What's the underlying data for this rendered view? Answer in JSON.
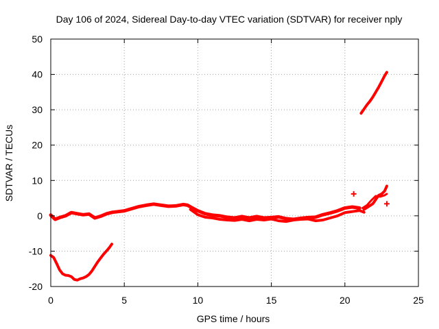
{
  "chart_data": {
    "type": "scatter",
    "title": "Day 106 of 2024, Sidereal Day-to-day VTEC variation (SDTVAR) for receiver nply",
    "xlabel": "GPS time / hours",
    "ylabel": "SDTVAR / TECUs",
    "xlim": [
      0,
      25
    ],
    "ylim": [
      -20,
      50
    ],
    "xticks": [
      0,
      5,
      10,
      15,
      20,
      25
    ],
    "yticks": [
      -20,
      -10,
      0,
      10,
      20,
      30,
      40,
      50
    ],
    "grid": true,
    "legend": "none",
    "color": "#ff0000",
    "series": [
      {
        "name": "track-negative-dip",
        "points": [
          [
            0.0,
            -11.2
          ],
          [
            0.2,
            -11.8
          ],
          [
            0.4,
            -13.5
          ],
          [
            0.6,
            -15.3
          ],
          [
            0.8,
            -16.4
          ],
          [
            1.0,
            -16.8
          ],
          [
            1.2,
            -16.9
          ],
          [
            1.4,
            -17.2
          ],
          [
            1.6,
            -18.0
          ],
          [
            1.8,
            -18.2
          ],
          [
            2.0,
            -17.8
          ],
          [
            2.2,
            -17.6
          ],
          [
            2.4,
            -17.2
          ],
          [
            2.6,
            -16.6
          ],
          [
            2.8,
            -15.6
          ],
          [
            3.0,
            -14.3
          ],
          [
            3.2,
            -13.0
          ],
          [
            3.4,
            -11.9
          ],
          [
            3.6,
            -10.8
          ],
          [
            3.8,
            -9.9
          ],
          [
            4.0,
            -8.9
          ],
          [
            4.15,
            -8.0
          ]
        ],
        "width": 4
      },
      {
        "name": "track-main-band",
        "points": [
          [
            0.0,
            0.2
          ],
          [
            0.3,
            -1.0
          ],
          [
            0.6,
            -0.5
          ],
          [
            1.0,
            0.0
          ],
          [
            1.4,
            0.9
          ],
          [
            1.8,
            0.6
          ],
          [
            2.2,
            0.3
          ],
          [
            2.6,
            0.5
          ],
          [
            3.0,
            -0.6
          ],
          [
            3.4,
            -0.1
          ],
          [
            3.8,
            0.6
          ],
          [
            4.2,
            1.0
          ],
          [
            4.6,
            1.2
          ],
          [
            5.0,
            1.4
          ],
          [
            5.5,
            2.0
          ],
          [
            6.0,
            2.6
          ],
          [
            6.5,
            3.0
          ],
          [
            7.0,
            3.3
          ],
          [
            7.5,
            3.0
          ],
          [
            8.0,
            2.7
          ],
          [
            8.5,
            2.8
          ],
          [
            9.0,
            3.2
          ],
          [
            9.3,
            3.0
          ],
          [
            9.6,
            2.3
          ],
          [
            10.0,
            1.4
          ],
          [
            10.5,
            0.6
          ],
          [
            11.0,
            0.2
          ],
          [
            11.5,
            0.0
          ],
          [
            12.0,
            -0.4
          ],
          [
            12.5,
            -0.6
          ],
          [
            13.0,
            -0.2
          ],
          [
            13.5,
            -0.6
          ],
          [
            14.0,
            -0.2
          ],
          [
            14.5,
            -0.6
          ],
          [
            15.0,
            -0.5
          ],
          [
            15.5,
            -0.3
          ],
          [
            16.0,
            -0.8
          ],
          [
            16.5,
            -1.0
          ],
          [
            17.0,
            -0.7
          ],
          [
            17.5,
            -0.5
          ],
          [
            18.0,
            -0.4
          ],
          [
            18.5,
            0.3
          ],
          [
            19.0,
            0.8
          ],
          [
            19.5,
            1.4
          ],
          [
            20.0,
            2.2
          ],
          [
            20.5,
            2.5
          ],
          [
            21.0,
            2.2
          ]
        ],
        "width": 5
      },
      {
        "name": "track-main-band-lower",
        "points": [
          [
            9.5,
            1.8
          ],
          [
            10.0,
            0.3
          ],
          [
            10.5,
            -0.4
          ],
          [
            11.0,
            -0.6
          ],
          [
            11.5,
            -1.0
          ],
          [
            12.0,
            -1.2
          ],
          [
            12.5,
            -1.3
          ],
          [
            13.0,
            -1.0
          ],
          [
            13.5,
            -1.4
          ],
          [
            14.0,
            -1.0
          ],
          [
            14.5,
            -1.2
          ],
          [
            15.0,
            -0.9
          ],
          [
            15.5,
            -1.4
          ],
          [
            16.0,
            -1.6
          ],
          [
            16.5,
            -1.2
          ],
          [
            17.0,
            -1.0
          ],
          [
            17.5,
            -0.9
          ],
          [
            18.0,
            -1.4
          ],
          [
            18.5,
            -1.2
          ],
          [
            19.0,
            -0.6
          ],
          [
            19.5,
            0.0
          ],
          [
            20.0,
            0.9
          ],
          [
            20.5,
            1.2
          ],
          [
            21.0,
            1.5
          ],
          [
            21.3,
            1.0
          ]
        ],
        "width": 4
      },
      {
        "name": "track-late-rise",
        "points": [
          [
            21.3,
            1.8
          ],
          [
            21.6,
            2.6
          ],
          [
            21.9,
            3.4
          ],
          [
            22.1,
            4.6
          ],
          [
            22.3,
            5.8
          ],
          [
            22.5,
            6.2
          ],
          [
            22.7,
            7.0
          ],
          [
            22.85,
            8.4
          ]
        ],
        "width": 4
      },
      {
        "name": "track-late-rise-lower",
        "points": [
          [
            21.2,
            2.2
          ],
          [
            21.5,
            3.0
          ],
          [
            21.8,
            4.4
          ],
          [
            22.1,
            5.6
          ],
          [
            22.4,
            5.4
          ],
          [
            22.7,
            5.8
          ],
          [
            22.85,
            6.2
          ]
        ],
        "width": 3
      },
      {
        "name": "track-high-segment",
        "points": [
          [
            21.1,
            29.0
          ],
          [
            21.3,
            30.2
          ],
          [
            21.5,
            31.4
          ],
          [
            21.7,
            32.4
          ],
          [
            21.9,
            33.6
          ],
          [
            22.1,
            35.0
          ],
          [
            22.3,
            36.4
          ],
          [
            22.5,
            38.0
          ],
          [
            22.7,
            39.6
          ],
          [
            22.85,
            40.6
          ]
        ],
        "width": 4
      }
    ],
    "markers": [
      {
        "name": "outlier-point",
        "x": 22.85,
        "y": 3.4
      },
      {
        "name": "spike-point",
        "x": 20.6,
        "y": 6.2
      }
    ]
  }
}
